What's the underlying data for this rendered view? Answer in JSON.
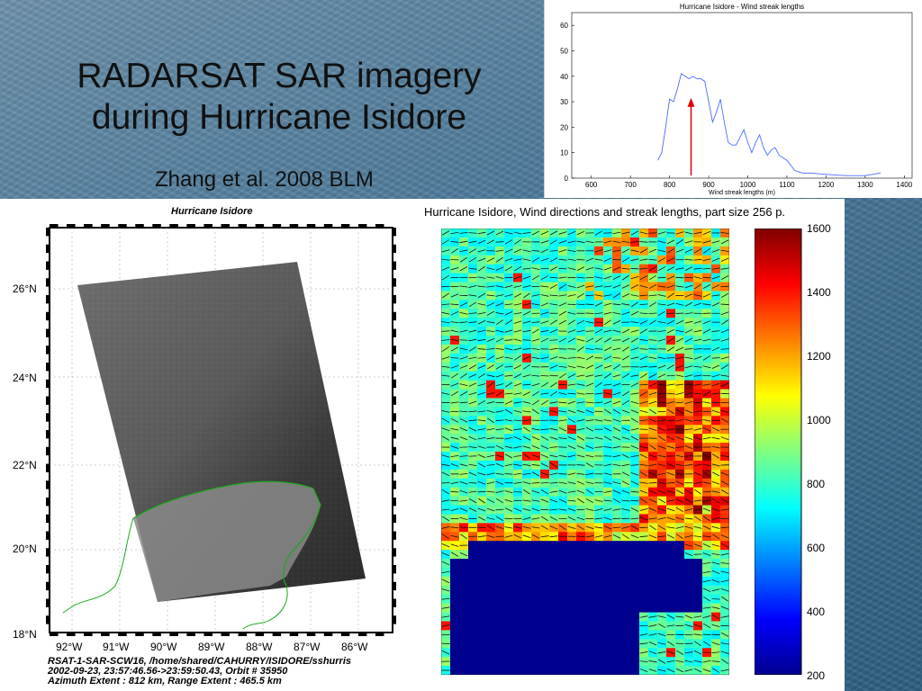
{
  "slide": {
    "title_line1": "RADARSAT SAR imagery",
    "title_line2": "during Hurricane Isidore",
    "subtitle": "Zhang et al. 2008 BLM"
  },
  "sar_figure": {
    "title": "Hurricane Isidore",
    "lat_labels": [
      "26°N",
      "24°N",
      "22°N",
      "20°N",
      "18°N"
    ],
    "lon_labels": [
      "92°W",
      "91°W",
      "90°W",
      "89°W",
      "88°W",
      "87°W",
      "86°W"
    ],
    "meta_line1": "RSAT-1-SAR-SCW16, /home/shared/CAHURRY/ISIDORE/sshurris",
    "meta_line2": "2002-09-23, 23:57:46.56->23:59:50.43, Orbit #   35950",
    "meta_line3": "Azimuth Extent : 812 km, Range Extent : 465.5 km"
  },
  "heatmap_figure": {
    "title": "Hurricane Isidore, Wind directions and streak lengths, part size 256 p.",
    "colorbar_ticks": [
      "1600",
      "1400",
      "1200",
      "1000",
      "800",
      "600",
      "400",
      "200"
    ],
    "colorbar_range": [
      200,
      1600
    ],
    "colors": {
      "land": "#00008f",
      "low": "#00a0ff",
      "mid": "#80ff80",
      "high": "#ff8000",
      "max": "#800000"
    }
  },
  "chart_data": {
    "type": "line",
    "title": "Hurricane Isidore - Wind streak lengths",
    "xlabel": "Wind streak lengths (m)",
    "ylabel": "",
    "xlim": [
      550,
      1420
    ],
    "ylim": [
      0,
      65
    ],
    "xticks": [
      "600",
      "700",
      "800",
      "900",
      "1000",
      "1100",
      "1200",
      "1300",
      "1400"
    ],
    "yticks": [
      "0",
      "10",
      "20",
      "30",
      "40",
      "50",
      "60"
    ],
    "x": [
      770,
      780,
      790,
      800,
      810,
      820,
      830,
      840,
      850,
      860,
      870,
      880,
      890,
      900,
      910,
      920,
      930,
      940,
      950,
      960,
      970,
      980,
      990,
      1000,
      1010,
      1020,
      1030,
      1040,
      1050,
      1060,
      1070,
      1080,
      1090,
      1100,
      1120,
      1140,
      1160,
      1200,
      1250,
      1300,
      1340
    ],
    "values": [
      7,
      10,
      20,
      31,
      30,
      35,
      41,
      40,
      39,
      40,
      39,
      39,
      38,
      30,
      22,
      26,
      31,
      22,
      14,
      13,
      13,
      16,
      19,
      14,
      10,
      14,
      17,
      12,
      9,
      11,
      12,
      9,
      8,
      7,
      3,
      2,
      2,
      1.5,
      1,
      1,
      2
    ],
    "marker_arrow_x": 855,
    "colors": {
      "line": "#4a6bff",
      "arrow": "#e00000"
    }
  }
}
